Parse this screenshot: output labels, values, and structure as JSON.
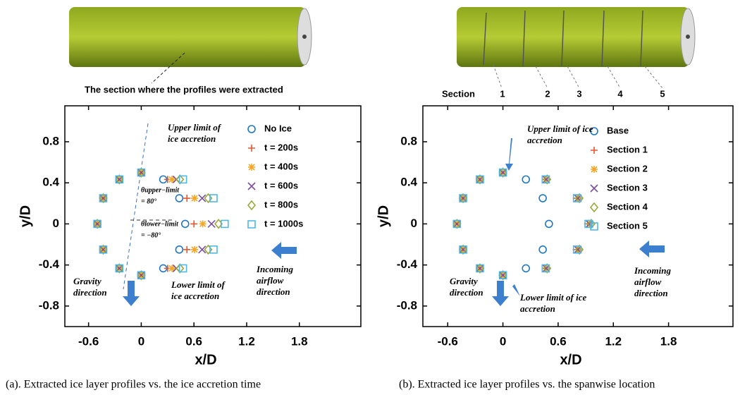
{
  "chart_data": [
    {
      "type": "scatter",
      "xlabel": "x/D",
      "ylabel": "y/D",
      "caption": "(a). Extracted ice layer profiles vs. the ice accretion time",
      "image_labels": [
        "The section where the profiles were extracted"
      ],
      "xlim": [
        -0.87,
        2.5
      ],
      "ylim": [
        -1.0,
        1.15
      ],
      "xticks": [
        -0.6,
        0,
        0.6,
        1.2,
        1.8
      ],
      "yticks": [
        -0.8,
        -0.4,
        0,
        0.4,
        0.8
      ],
      "annotations": [
        [
          "Upper limit of",
          "ice accretion"
        ],
        [
          "Lower limit of",
          "ice accretion"
        ],
        [
          "Gravity",
          "direction"
        ],
        [
          "Incoming",
          "airflow",
          "direction"
        ],
        [
          "θupper−limit",
          "= 80°"
        ],
        [
          "θlower−limit",
          "= −80°"
        ]
      ],
      "series": [
        {
          "name": "No Ice",
          "color": "#1f77c4",
          "marker": "circle",
          "x": [
            0.5,
            0.433,
            0.25,
            0,
            -0.25,
            -0.433,
            -0.5,
            -0.433,
            -0.25,
            0,
            0.25,
            0.433
          ],
          "values": [
            0,
            0.25,
            0.433,
            0.5,
            0.433,
            0.25,
            0,
            -0.25,
            -0.433,
            -0.5,
            -0.433,
            -0.25
          ]
        },
        {
          "name": "t = 200s",
          "color": "#e8562c",
          "marker": "plus",
          "x": [
            0.6,
            0.52,
            0.3,
            0,
            -0.25,
            -0.433,
            -0.5,
            -0.433,
            -0.25,
            0,
            0.3,
            0.52
          ],
          "values": [
            0,
            0.25,
            0.433,
            0.5,
            0.433,
            0.25,
            0,
            -0.25,
            -0.433,
            -0.5,
            -0.433,
            -0.25
          ]
        },
        {
          "name": "t = 400s",
          "color": "#f5a623",
          "marker": "star",
          "x": [
            0.7,
            0.606,
            0.35,
            0,
            -0.25,
            -0.433,
            -0.5,
            -0.433,
            -0.25,
            0,
            0.35,
            0.606
          ],
          "values": [
            0,
            0.25,
            0.433,
            0.5,
            0.433,
            0.25,
            0,
            -0.25,
            -0.433,
            -0.5,
            -0.433,
            -0.25
          ]
        },
        {
          "name": "t = 600s",
          "color": "#7b4fa0",
          "marker": "cross",
          "x": [
            0.8,
            0.693,
            0.4,
            0,
            -0.25,
            -0.433,
            -0.5,
            -0.433,
            -0.25,
            0,
            0.4,
            0.693
          ],
          "values": [
            0,
            0.25,
            0.433,
            0.5,
            0.433,
            0.25,
            0,
            -0.25,
            -0.433,
            -0.5,
            -0.433,
            -0.25
          ]
        },
        {
          "name": "t = 800s",
          "color": "#9aa83a",
          "marker": "diamond",
          "x": [
            0.88,
            0.762,
            0.44,
            0,
            -0.25,
            -0.433,
            -0.5,
            -0.433,
            -0.25,
            0,
            0.44,
            0.762
          ],
          "values": [
            0,
            0.25,
            0.433,
            0.5,
            0.433,
            0.25,
            0,
            -0.25,
            -0.433,
            -0.5,
            -0.433,
            -0.25
          ]
        },
        {
          "name": "t = 1000s",
          "color": "#4fb8e8",
          "marker": "square",
          "x": [
            0.95,
            0.823,
            0.475,
            0,
            -0.25,
            -0.433,
            -0.5,
            -0.433,
            -0.25,
            0,
            0.475,
            0.823
          ],
          "values": [
            0,
            0.25,
            0.433,
            0.5,
            0.433,
            0.25,
            0,
            -0.25,
            -0.433,
            -0.5,
            -0.433,
            -0.25
          ]
        }
      ]
    },
    {
      "type": "scatter",
      "xlabel": "x/D",
      "ylabel": "y/D",
      "caption": "(b). Extracted ice layer profiles vs. the spanwise location",
      "image_labels": [
        "Section",
        "1",
        "2",
        "3",
        "4",
        "5"
      ],
      "xlim": [
        -0.87,
        2.5
      ],
      "ylim": [
        -1.0,
        1.15
      ],
      "xticks": [
        -0.6,
        0,
        0.6,
        1.2,
        1.8
      ],
      "yticks": [
        -0.8,
        -0.4,
        0,
        0.4,
        0.8
      ],
      "annotations": [
        [
          "Upper limit of ice",
          "accretion"
        ],
        [
          "Lower limit of ice",
          "accretion"
        ],
        [
          "Gravity",
          "direction"
        ],
        [
          "Incoming",
          "airflow",
          "direction"
        ]
      ],
      "series": [
        {
          "name": "Base",
          "color": "#1f77c4",
          "marker": "circle",
          "x": [
            0.5,
            0.433,
            0.25,
            0,
            -0.25,
            -0.433,
            -0.5,
            -0.433,
            -0.25,
            0,
            0.25,
            0.433
          ],
          "values": [
            0,
            0.25,
            0.433,
            0.5,
            0.433,
            0.25,
            0,
            -0.25,
            -0.433,
            -0.5,
            -0.433,
            -0.25
          ]
        },
        {
          "name": "Section 1",
          "color": "#e8562c",
          "marker": "plus",
          "x": [
            0.92,
            0.797,
            0.46,
            0,
            -0.25,
            -0.433,
            -0.5,
            -0.433,
            -0.25,
            0,
            0.46,
            0.797
          ],
          "values": [
            0,
            0.25,
            0.433,
            0.5,
            0.433,
            0.25,
            0,
            -0.25,
            -0.433,
            -0.5,
            -0.433,
            -0.25
          ]
        },
        {
          "name": "Section 2",
          "color": "#f5a623",
          "marker": "star",
          "x": [
            0.95,
            0.823,
            0.475,
            0,
            -0.25,
            -0.433,
            -0.5,
            -0.433,
            -0.25,
            0,
            0.475,
            0.823
          ],
          "values": [
            0,
            0.25,
            0.433,
            0.5,
            0.433,
            0.25,
            0,
            -0.25,
            -0.433,
            -0.5,
            -0.433,
            -0.25
          ]
        },
        {
          "name": "Section 3",
          "color": "#7b4fa0",
          "marker": "cross",
          "x": [
            0.94,
            0.814,
            0.47,
            0,
            -0.25,
            -0.433,
            -0.5,
            -0.433,
            -0.25,
            0,
            0.47,
            0.814
          ],
          "values": [
            0,
            0.25,
            0.433,
            0.5,
            0.433,
            0.25,
            0,
            -0.25,
            -0.433,
            -0.5,
            -0.433,
            -0.25
          ]
        },
        {
          "name": "Section 4",
          "color": "#9aa83a",
          "marker": "diamond",
          "x": [
            0.96,
            0.831,
            0.48,
            0,
            -0.25,
            -0.433,
            -0.5,
            -0.433,
            -0.25,
            0,
            0.48,
            0.831
          ],
          "values": [
            0,
            0.25,
            0.433,
            0.5,
            0.433,
            0.25,
            0,
            -0.25,
            -0.433,
            -0.5,
            -0.433,
            -0.25
          ]
        },
        {
          "name": "Section 5",
          "color": "#4fb8e8",
          "marker": "square",
          "x": [
            0.93,
            0.805,
            0.465,
            0,
            -0.25,
            -0.433,
            -0.5,
            -0.433,
            -0.25,
            0,
            0.465,
            0.805
          ],
          "values": [
            0,
            0.25,
            0.433,
            0.5,
            0.433,
            0.25,
            0,
            -0.25,
            -0.433,
            -0.5,
            -0.433,
            -0.25
          ]
        }
      ]
    }
  ]
}
